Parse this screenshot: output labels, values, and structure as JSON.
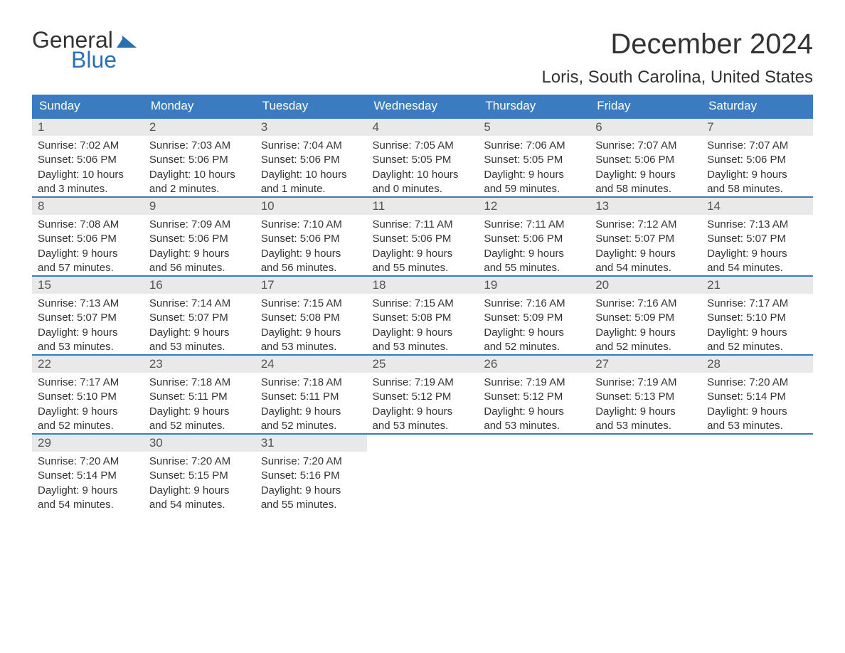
{
  "logo": {
    "general": "General",
    "blue": "Blue",
    "flag_color": "#2a6fb3"
  },
  "header": {
    "month_title": "December 2024",
    "location": "Loris, South Carolina, United States"
  },
  "colors": {
    "header_bg": "#3a7cbf",
    "header_text": "#ffffff",
    "daynum_bg": "#e9e9e9",
    "daynum_text": "#555555",
    "body_text": "#333333",
    "row_border": "#3a7cbf",
    "logo_blue": "#2a6fb3"
  },
  "day_headers": [
    "Sunday",
    "Monday",
    "Tuesday",
    "Wednesday",
    "Thursday",
    "Friday",
    "Saturday"
  ],
  "weeks": [
    [
      {
        "num": "1",
        "sunrise": "Sunrise: 7:02 AM",
        "sunset": "Sunset: 5:06 PM",
        "daylight1": "Daylight: 10 hours",
        "daylight2": "and 3 minutes."
      },
      {
        "num": "2",
        "sunrise": "Sunrise: 7:03 AM",
        "sunset": "Sunset: 5:06 PM",
        "daylight1": "Daylight: 10 hours",
        "daylight2": "and 2 minutes."
      },
      {
        "num": "3",
        "sunrise": "Sunrise: 7:04 AM",
        "sunset": "Sunset: 5:06 PM",
        "daylight1": "Daylight: 10 hours",
        "daylight2": "and 1 minute."
      },
      {
        "num": "4",
        "sunrise": "Sunrise: 7:05 AM",
        "sunset": "Sunset: 5:05 PM",
        "daylight1": "Daylight: 10 hours",
        "daylight2": "and 0 minutes."
      },
      {
        "num": "5",
        "sunrise": "Sunrise: 7:06 AM",
        "sunset": "Sunset: 5:05 PM",
        "daylight1": "Daylight: 9 hours",
        "daylight2": "and 59 minutes."
      },
      {
        "num": "6",
        "sunrise": "Sunrise: 7:07 AM",
        "sunset": "Sunset: 5:06 PM",
        "daylight1": "Daylight: 9 hours",
        "daylight2": "and 58 minutes."
      },
      {
        "num": "7",
        "sunrise": "Sunrise: 7:07 AM",
        "sunset": "Sunset: 5:06 PM",
        "daylight1": "Daylight: 9 hours",
        "daylight2": "and 58 minutes."
      }
    ],
    [
      {
        "num": "8",
        "sunrise": "Sunrise: 7:08 AM",
        "sunset": "Sunset: 5:06 PM",
        "daylight1": "Daylight: 9 hours",
        "daylight2": "and 57 minutes."
      },
      {
        "num": "9",
        "sunrise": "Sunrise: 7:09 AM",
        "sunset": "Sunset: 5:06 PM",
        "daylight1": "Daylight: 9 hours",
        "daylight2": "and 56 minutes."
      },
      {
        "num": "10",
        "sunrise": "Sunrise: 7:10 AM",
        "sunset": "Sunset: 5:06 PM",
        "daylight1": "Daylight: 9 hours",
        "daylight2": "and 56 minutes."
      },
      {
        "num": "11",
        "sunrise": "Sunrise: 7:11 AM",
        "sunset": "Sunset: 5:06 PM",
        "daylight1": "Daylight: 9 hours",
        "daylight2": "and 55 minutes."
      },
      {
        "num": "12",
        "sunrise": "Sunrise: 7:11 AM",
        "sunset": "Sunset: 5:06 PM",
        "daylight1": "Daylight: 9 hours",
        "daylight2": "and 55 minutes."
      },
      {
        "num": "13",
        "sunrise": "Sunrise: 7:12 AM",
        "sunset": "Sunset: 5:07 PM",
        "daylight1": "Daylight: 9 hours",
        "daylight2": "and 54 minutes."
      },
      {
        "num": "14",
        "sunrise": "Sunrise: 7:13 AM",
        "sunset": "Sunset: 5:07 PM",
        "daylight1": "Daylight: 9 hours",
        "daylight2": "and 54 minutes."
      }
    ],
    [
      {
        "num": "15",
        "sunrise": "Sunrise: 7:13 AM",
        "sunset": "Sunset: 5:07 PM",
        "daylight1": "Daylight: 9 hours",
        "daylight2": "and 53 minutes."
      },
      {
        "num": "16",
        "sunrise": "Sunrise: 7:14 AM",
        "sunset": "Sunset: 5:07 PM",
        "daylight1": "Daylight: 9 hours",
        "daylight2": "and 53 minutes."
      },
      {
        "num": "17",
        "sunrise": "Sunrise: 7:15 AM",
        "sunset": "Sunset: 5:08 PM",
        "daylight1": "Daylight: 9 hours",
        "daylight2": "and 53 minutes."
      },
      {
        "num": "18",
        "sunrise": "Sunrise: 7:15 AM",
        "sunset": "Sunset: 5:08 PM",
        "daylight1": "Daylight: 9 hours",
        "daylight2": "and 53 minutes."
      },
      {
        "num": "19",
        "sunrise": "Sunrise: 7:16 AM",
        "sunset": "Sunset: 5:09 PM",
        "daylight1": "Daylight: 9 hours",
        "daylight2": "and 52 minutes."
      },
      {
        "num": "20",
        "sunrise": "Sunrise: 7:16 AM",
        "sunset": "Sunset: 5:09 PM",
        "daylight1": "Daylight: 9 hours",
        "daylight2": "and 52 minutes."
      },
      {
        "num": "21",
        "sunrise": "Sunrise: 7:17 AM",
        "sunset": "Sunset: 5:10 PM",
        "daylight1": "Daylight: 9 hours",
        "daylight2": "and 52 minutes."
      }
    ],
    [
      {
        "num": "22",
        "sunrise": "Sunrise: 7:17 AM",
        "sunset": "Sunset: 5:10 PM",
        "daylight1": "Daylight: 9 hours",
        "daylight2": "and 52 minutes."
      },
      {
        "num": "23",
        "sunrise": "Sunrise: 7:18 AM",
        "sunset": "Sunset: 5:11 PM",
        "daylight1": "Daylight: 9 hours",
        "daylight2": "and 52 minutes."
      },
      {
        "num": "24",
        "sunrise": "Sunrise: 7:18 AM",
        "sunset": "Sunset: 5:11 PM",
        "daylight1": "Daylight: 9 hours",
        "daylight2": "and 52 minutes."
      },
      {
        "num": "25",
        "sunrise": "Sunrise: 7:19 AM",
        "sunset": "Sunset: 5:12 PM",
        "daylight1": "Daylight: 9 hours",
        "daylight2": "and 53 minutes."
      },
      {
        "num": "26",
        "sunrise": "Sunrise: 7:19 AM",
        "sunset": "Sunset: 5:12 PM",
        "daylight1": "Daylight: 9 hours",
        "daylight2": "and 53 minutes."
      },
      {
        "num": "27",
        "sunrise": "Sunrise: 7:19 AM",
        "sunset": "Sunset: 5:13 PM",
        "daylight1": "Daylight: 9 hours",
        "daylight2": "and 53 minutes."
      },
      {
        "num": "28",
        "sunrise": "Sunrise: 7:20 AM",
        "sunset": "Sunset: 5:14 PM",
        "daylight1": "Daylight: 9 hours",
        "daylight2": "and 53 minutes."
      }
    ],
    [
      {
        "num": "29",
        "sunrise": "Sunrise: 7:20 AM",
        "sunset": "Sunset: 5:14 PM",
        "daylight1": "Daylight: 9 hours",
        "daylight2": "and 54 minutes."
      },
      {
        "num": "30",
        "sunrise": "Sunrise: 7:20 AM",
        "sunset": "Sunset: 5:15 PM",
        "daylight1": "Daylight: 9 hours",
        "daylight2": "and 54 minutes."
      },
      {
        "num": "31",
        "sunrise": "Sunrise: 7:20 AM",
        "sunset": "Sunset: 5:16 PM",
        "daylight1": "Daylight: 9 hours",
        "daylight2": "and 55 minutes."
      },
      null,
      null,
      null,
      null
    ]
  ]
}
